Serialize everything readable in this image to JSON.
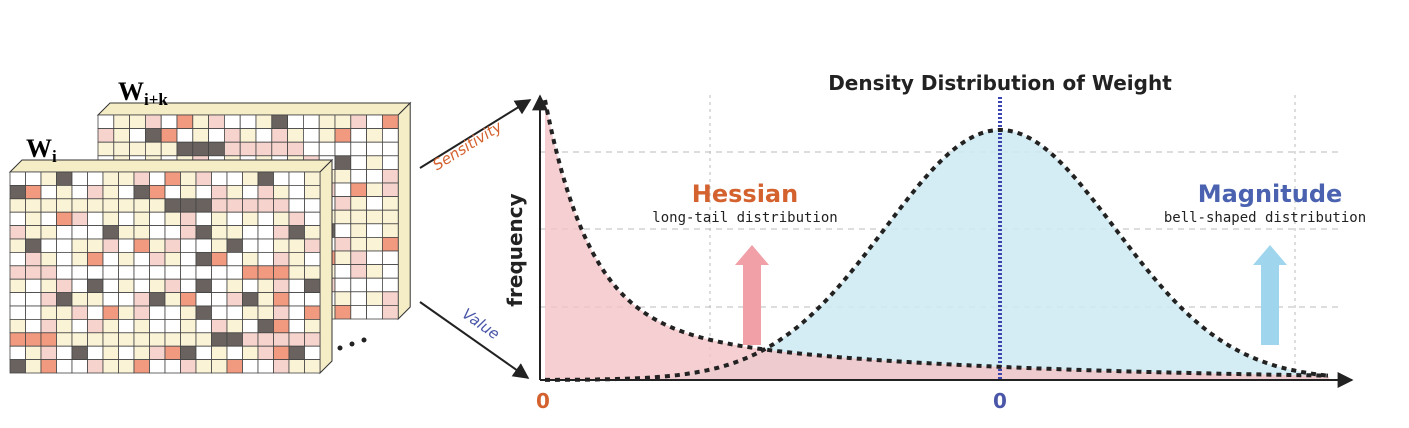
{
  "matrices": [
    {
      "symbol": "W",
      "subscript": "i+k"
    },
    {
      "symbol": "W",
      "subscript": "i"
    }
  ],
  "arrows": {
    "upper": "Sensitivity",
    "lower": "Value"
  },
  "plot": {
    "title": "Density Distribution of Weight",
    "y_label": "frequency",
    "hessian": {
      "name": "Hessian",
      "description": "long-tail distribution",
      "origin": "0"
    },
    "magnitude": {
      "name": "Magnitude",
      "description": "bell-shaped distribution",
      "origin": "0"
    }
  }
}
